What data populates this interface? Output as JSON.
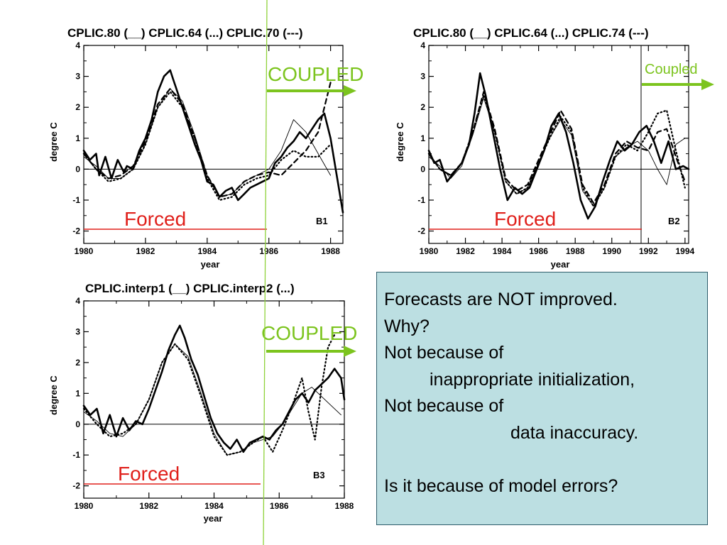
{
  "chart_data": [
    {
      "type": "line",
      "panel": "B1",
      "title": "CPLIC.80 (__) CPLIC.64 (...) CPLIC.70 (---)",
      "xlabel": "year",
      "ylabel": "degree C",
      "xlim": [
        1980,
        1988.4
      ],
      "ylim": [
        -2.4,
        4
      ],
      "xticks": [
        "1980",
        "1982",
        "1984",
        "1986",
        "1988"
      ],
      "yticks": [
        "-2",
        "-1",
        "0",
        "1",
        "2",
        "3",
        "4"
      ],
      "coupling_start": 1986,
      "regime_labels": {
        "forced": "Forced",
        "coupled": "COUPLED"
      },
      "series": [
        {
          "style": "solid-thick",
          "x": [
            1980.0,
            1980.2,
            1980.4,
            1980.5,
            1980.7,
            1980.9,
            1981.1,
            1981.3,
            1981.4,
            1981.6,
            1981.8,
            1982.0,
            1982.2,
            1982.4,
            1982.6,
            1982.8,
            1982.9,
            1983.0,
            1983.2,
            1983.4,
            1983.6,
            1983.8,
            1984.0,
            1984.2,
            1984.4,
            1984.6,
            1984.8,
            1985.0,
            1985.2,
            1985.4,
            1985.6,
            1985.8,
            1986.0,
            1986.2,
            1986.4,
            1986.6,
            1986.8,
            1987.0,
            1987.2,
            1987.4,
            1987.6,
            1987.8,
            1988.0,
            1988.2,
            1988.4
          ],
          "y": [
            0.6,
            0.3,
            0.5,
            -0.2,
            0.4,
            -0.3,
            0.3,
            -0.1,
            0.1,
            0.0,
            0.6,
            1.0,
            1.6,
            2.5,
            3.0,
            3.2,
            2.9,
            2.6,
            2.0,
            1.4,
            0.8,
            0.3,
            -0.4,
            -0.5,
            -0.9,
            -0.7,
            -0.6,
            -1.0,
            -0.8,
            -0.6,
            -0.5,
            -0.4,
            -0.3,
            0.2,
            0.4,
            0.7,
            0.9,
            1.2,
            1.0,
            1.3,
            1.6,
            1.8,
            1.0,
            -0.2,
            -1.4
          ]
        },
        {
          "style": "dotted",
          "x": [
            1980.0,
            1980.4,
            1980.8,
            1981.2,
            1981.6,
            1982.0,
            1982.4,
            1982.8,
            1983.2,
            1983.6,
            1984.0,
            1984.4,
            1984.8,
            1985.2,
            1985.6,
            1986.0,
            1986.4,
            1986.8,
            1987.2,
            1987.6,
            1988.0
          ],
          "y": [
            0.5,
            0.0,
            -0.4,
            -0.3,
            0.0,
            0.8,
            2.0,
            2.5,
            2.0,
            1.0,
            -0.3,
            -1.0,
            -0.9,
            -0.5,
            -0.3,
            -0.2,
            0.3,
            0.6,
            0.4,
            0.4,
            0.8
          ]
        },
        {
          "style": "dashed",
          "x": [
            1980.0,
            1980.4,
            1980.8,
            1981.2,
            1981.6,
            1982.0,
            1982.4,
            1982.8,
            1983.2,
            1983.6,
            1984.0,
            1984.4,
            1984.8,
            1985.2,
            1985.6,
            1986.0,
            1986.4,
            1986.8,
            1987.2,
            1987.6,
            1988.0
          ],
          "y": [
            0.5,
            0.0,
            -0.3,
            -0.2,
            0.1,
            0.9,
            2.1,
            2.6,
            2.1,
            1.0,
            -0.2,
            -0.9,
            -0.8,
            -0.4,
            -0.2,
            -0.1,
            -0.2,
            0.2,
            0.6,
            1.2,
            2.8
          ]
        },
        {
          "style": "solid-thin",
          "x": [
            1980.0,
            1980.4,
            1980.8,
            1981.2,
            1981.6,
            1982.0,
            1982.4,
            1982.8,
            1983.2,
            1983.6,
            1984.0,
            1984.4,
            1984.8,
            1985.2,
            1985.6,
            1986.0,
            1986.4,
            1986.8,
            1987.2,
            1987.6,
            1988.0
          ],
          "y": [
            0.4,
            0.1,
            -0.3,
            -0.3,
            0.0,
            0.8,
            2.0,
            2.6,
            2.2,
            1.1,
            -0.2,
            -0.9,
            -0.8,
            -0.4,
            -0.2,
            0.0,
            0.6,
            1.6,
            1.2,
            0.5,
            -0.2
          ]
        }
      ]
    },
    {
      "type": "line",
      "panel": "B2",
      "title": "CPLIC.80 (__) CPLIC.64 (...) CPLIC.74 (---)",
      "xlabel": "year",
      "ylabel": "degree C",
      "xlim": [
        1980,
        1994.2
      ],
      "ylim": [
        -2.4,
        4
      ],
      "xticks": [
        "1980",
        "1982",
        "1984",
        "1986",
        "1988",
        "1990",
        "1992",
        "1994"
      ],
      "yticks": [
        "-2",
        "-1",
        "0",
        "1",
        "2",
        "3",
        "4"
      ],
      "coupling_start": 1991.6,
      "regime_labels": {
        "forced": "Forced",
        "coupled": "Coupled"
      },
      "series": [
        {
          "style": "solid-thick",
          "x": [
            1980.0,
            1980.3,
            1980.6,
            1981.0,
            1981.4,
            1981.8,
            1982.2,
            1982.5,
            1982.8,
            1983.1,
            1983.5,
            1983.9,
            1984.3,
            1984.7,
            1985.1,
            1985.5,
            1985.9,
            1986.3,
            1986.7,
            1987.1,
            1987.5,
            1987.9,
            1988.3,
            1988.7,
            1989.1,
            1989.5,
            1989.9,
            1990.3,
            1990.7,
            1991.1,
            1991.5,
            1991.9,
            1992.3,
            1992.7,
            1993.1,
            1993.5,
            1993.9,
            1994.2
          ],
          "y": [
            0.6,
            0.2,
            0.3,
            -0.4,
            -0.1,
            0.2,
            0.8,
            1.8,
            3.1,
            2.4,
            1.2,
            0.0,
            -1.0,
            -0.6,
            -0.8,
            -0.6,
            0.0,
            0.6,
            1.4,
            1.8,
            1.2,
            0.2,
            -1.0,
            -1.6,
            -1.2,
            -0.4,
            0.3,
            0.9,
            0.6,
            0.8,
            1.2,
            1.4,
            0.9,
            0.2,
            0.9,
            0.0,
            0.1,
            0.0
          ]
        },
        {
          "style": "dotted",
          "x": [
            1980.0,
            1980.6,
            1981.2,
            1981.8,
            1982.4,
            1983.0,
            1983.6,
            1984.2,
            1984.8,
            1985.4,
            1986.0,
            1986.6,
            1987.2,
            1987.8,
            1988.4,
            1989.0,
            1989.6,
            1990.2,
            1990.8,
            1991.4,
            1992.0,
            1992.5,
            1993.0,
            1993.5,
            1994.0
          ],
          "y": [
            0.5,
            0.0,
            -0.2,
            0.2,
            1.2,
            2.4,
            1.2,
            -0.4,
            -0.8,
            -0.6,
            0.2,
            1.0,
            1.7,
            1.2,
            -0.6,
            -1.2,
            -0.6,
            0.4,
            0.8,
            0.6,
            1.2,
            1.8,
            1.9,
            0.6,
            -0.6
          ]
        },
        {
          "style": "dashed",
          "x": [
            1980.0,
            1980.6,
            1981.2,
            1981.8,
            1982.4,
            1983.0,
            1983.6,
            1984.2,
            1984.8,
            1985.4,
            1986.0,
            1986.6,
            1987.2,
            1987.8,
            1988.4,
            1989.0,
            1989.6,
            1990.2,
            1990.8,
            1991.4,
            1992.0,
            1992.5,
            1993.0,
            1993.5,
            1994.0
          ],
          "y": [
            0.5,
            0.0,
            -0.2,
            0.2,
            1.2,
            2.5,
            1.3,
            -0.3,
            -0.7,
            -0.5,
            0.3,
            1.1,
            1.9,
            1.3,
            -0.5,
            -1.1,
            -0.5,
            0.5,
            0.9,
            0.7,
            0.6,
            1.2,
            1.3,
            0.4,
            -0.4
          ]
        },
        {
          "style": "solid-thin",
          "x": [
            1980.0,
            1980.6,
            1981.2,
            1981.8,
            1982.4,
            1983.0,
            1983.6,
            1984.2,
            1984.8,
            1985.4,
            1986.0,
            1986.6,
            1987.2,
            1987.8,
            1988.4,
            1989.0,
            1989.6,
            1990.2,
            1990.8,
            1991.4,
            1992.0,
            1992.5,
            1993.0,
            1993.5,
            1994.0
          ],
          "y": [
            0.4,
            0.1,
            -0.3,
            0.1,
            1.1,
            2.3,
            1.2,
            -0.4,
            -0.8,
            -0.6,
            0.2,
            1.0,
            1.6,
            1.1,
            -0.7,
            -1.2,
            -0.6,
            0.4,
            0.7,
            0.9,
            0.6,
            0.0,
            -0.5,
            0.8,
            1.0
          ]
        }
      ]
    },
    {
      "type": "line",
      "panel": "B3",
      "title": "CPLIC.interp1 (__) CPLIC.interp2 (...)",
      "xlabel": "year",
      "ylabel": "degree C",
      "xlim": [
        1980,
        1988
      ],
      "ylim": [
        -2.4,
        4
      ],
      "xticks": [
        "1980",
        "1982",
        "1984",
        "1986",
        "1988"
      ],
      "yticks": [
        "-2",
        "-1",
        "0",
        "1",
        "2",
        "3",
        "4"
      ],
      "coupling_start": 1985.5,
      "regime_labels": {
        "forced": "Forced",
        "coupled": "COUPLED"
      },
      "series": [
        {
          "style": "solid-thick",
          "x": [
            1980.0,
            1980.2,
            1980.4,
            1980.6,
            1980.8,
            1981.0,
            1981.2,
            1981.4,
            1981.6,
            1981.8,
            1982.0,
            1982.2,
            1982.4,
            1982.6,
            1982.8,
            1982.95,
            1983.1,
            1983.3,
            1983.5,
            1983.7,
            1983.9,
            1984.1,
            1984.3,
            1984.5,
            1984.7,
            1984.9,
            1985.1,
            1985.3,
            1985.5,
            1985.7,
            1985.9,
            1986.1,
            1986.3,
            1986.5,
            1986.7,
            1986.9,
            1987.1,
            1987.3,
            1987.5,
            1987.7,
            1987.9,
            1988.0
          ],
          "y": [
            0.6,
            0.3,
            0.5,
            -0.3,
            0.3,
            -0.4,
            0.2,
            -0.2,
            0.1,
            0.0,
            0.5,
            1.1,
            1.7,
            2.4,
            2.9,
            3.2,
            2.8,
            2.1,
            1.6,
            0.9,
            0.2,
            -0.3,
            -0.6,
            -0.8,
            -0.5,
            -0.9,
            -0.6,
            -0.5,
            -0.4,
            -0.5,
            -0.2,
            0.0,
            0.4,
            0.8,
            1.0,
            0.7,
            1.1,
            1.3,
            1.5,
            1.8,
            1.5,
            0.8
          ]
        },
        {
          "style": "dotted",
          "x": [
            1980.0,
            1980.4,
            1980.8,
            1981.2,
            1981.6,
            1982.0,
            1982.4,
            1982.8,
            1983.2,
            1983.6,
            1984.0,
            1984.4,
            1984.8,
            1985.2,
            1985.5,
            1985.8,
            1986.1,
            1986.4,
            1986.7,
            1986.9,
            1987.1,
            1987.3,
            1987.5,
            1987.7
          ],
          "y": [
            0.5,
            0.0,
            -0.4,
            -0.3,
            0.0,
            0.8,
            2.0,
            2.6,
            2.1,
            0.9,
            -0.4,
            -1.0,
            -0.9,
            -0.6,
            -0.4,
            -0.9,
            -0.2,
            0.6,
            1.5,
            0.4,
            -0.5,
            1.2,
            2.5,
            2.9
          ]
        },
        {
          "style": "solid-thin",
          "x": [
            1980.0,
            1980.4,
            1980.8,
            1981.2,
            1981.6,
            1982.0,
            1982.4,
            1982.8,
            1983.2,
            1983.6,
            1984.0,
            1984.4,
            1984.8,
            1985.2,
            1985.5,
            1985.8,
            1986.1,
            1986.4,
            1986.7,
            1987.0,
            1987.3,
            1987.6,
            1987.9
          ],
          "y": [
            0.4,
            0.1,
            -0.3,
            -0.4,
            0.0,
            0.8,
            2.0,
            2.6,
            2.2,
            1.0,
            -0.3,
            -1.0,
            -0.9,
            -0.6,
            -0.5,
            -0.4,
            0.0,
            0.5,
            1.0,
            1.2,
            0.9,
            0.6,
            0.3
          ]
        }
      ]
    }
  ],
  "text_box": {
    "lines": [
      {
        "text": "Forecasts are NOT improved.",
        "indent": 0
      },
      {
        "text": "Why?",
        "indent": 0
      },
      {
        "text": "Not because of",
        "indent": 0
      },
      {
        "text": "inappropriate initialization,",
        "indent": 1
      },
      {
        "text": "Not because of",
        "indent": 0
      },
      {
        "text": "data inaccuracy.",
        "indent": 2
      },
      {
        "text": "",
        "indent": 0
      },
      {
        "text": "Is it because of model errors?",
        "indent": 0
      }
    ]
  },
  "colors": {
    "forced": "#e0201b",
    "coupled": "#7cc41e",
    "textbox_bg": "#bcdfe2",
    "axes": "#000000"
  }
}
